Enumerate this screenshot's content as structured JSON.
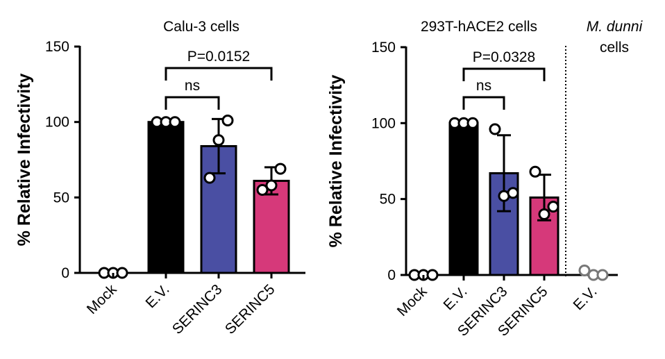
{
  "chart_data": [
    {
      "type": "bar",
      "title": "Calu-3 cells",
      "ylabel": "% Relative Infectivity",
      "ylim": [
        0,
        150
      ],
      "yticks": [
        0,
        50,
        100,
        150
      ],
      "categories": [
        "Mock",
        "E.V.",
        "SERINC3",
        "SERINC5"
      ],
      "values": [
        0,
        100,
        84,
        61
      ],
      "errors": [
        0,
        0,
        18,
        9
      ],
      "points": [
        [
          0,
          0,
          0
        ],
        [
          100,
          100,
          100
        ],
        [
          63,
          88,
          101
        ],
        [
          55,
          58,
          69
        ]
      ],
      "colors": [
        "#ffffff",
        "#000000",
        "#4a4fa3",
        "#d6397a"
      ],
      "annotations": [
        {
          "label": "ns",
          "from": "E.V.",
          "to": "SERINC3"
        },
        {
          "label": "P=0.0152",
          "from": "E.V.",
          "to": "SERINC5"
        }
      ]
    },
    {
      "type": "bar",
      "title": "293T-hACE2 cells",
      "ylabel": "% Relative Infectivity",
      "ylim": [
        0,
        150
      ],
      "yticks": [
        0,
        50,
        100,
        150
      ],
      "categories": [
        "Mock",
        "E.V.",
        "SERINC3",
        "SERINC5"
      ],
      "values": [
        0,
        100,
        67,
        51
      ],
      "errors": [
        0,
        0,
        25,
        15
      ],
      "points": [
        [
          0,
          0,
          0
        ],
        [
          100,
          100,
          100
        ],
        [
          96,
          52,
          54
        ],
        [
          68,
          40,
          45
        ]
      ],
      "colors": [
        "#ffffff",
        "#000000",
        "#4a4fa3",
        "#d6397a"
      ],
      "annotations": [
        {
          "label": "ns",
          "from": "E.V.",
          "to": "SERINC3"
        },
        {
          "label": "P=0.0328",
          "from": "E.V.",
          "to": "SERINC5"
        }
      ],
      "extra_group": {
        "title_italic": "M. dunni",
        "title_rest": "cells",
        "categories": [
          "E.V."
        ],
        "points": [
          3,
          0,
          0
        ],
        "point_color": "#777777"
      }
    }
  ]
}
